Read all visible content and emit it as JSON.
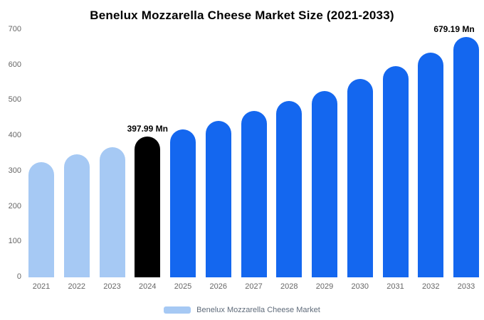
{
  "title": "Benelux Mozzarella Cheese Market Size (2021-2033)",
  "legend": {
    "label": "Benelux Mozzarella Cheese Market",
    "swatch_color": "#a6c9f4"
  },
  "colors": {
    "historical": "#a6c9f4",
    "base_year": "#000000",
    "forecast": "#1467ef",
    "axis_text": "#666666",
    "background": "#ffffff"
  },
  "chart_data": {
    "type": "bar",
    "title": "Benelux Mozzarella Cheese Market Size (2021-2033)",
    "categories": [
      "2021",
      "2022",
      "2023",
      "2024",
      "2025",
      "2026",
      "2027",
      "2028",
      "2029",
      "2030",
      "2031",
      "2032",
      "2033"
    ],
    "values": [
      325,
      348,
      368,
      397.99,
      418,
      443,
      470,
      498,
      528,
      562,
      597,
      636,
      679.19
    ],
    "bar_colors": [
      "#a6c9f4",
      "#a6c9f4",
      "#a6c9f4",
      "#000000",
      "#1467ef",
      "#1467ef",
      "#1467ef",
      "#1467ef",
      "#1467ef",
      "#1467ef",
      "#1467ef",
      "#1467ef",
      "#1467ef"
    ],
    "annotations": [
      {
        "category": "2024",
        "text": "397.99 Mn"
      },
      {
        "category": "2033",
        "text": "679.19 Mn"
      }
    ],
    "xlabel": "",
    "ylabel": "",
    "ylim": [
      0,
      700
    ],
    "yticks": [
      0,
      100,
      200,
      300,
      400,
      500,
      600,
      700
    ],
    "grid": false,
    "legend_position": "bottom"
  }
}
